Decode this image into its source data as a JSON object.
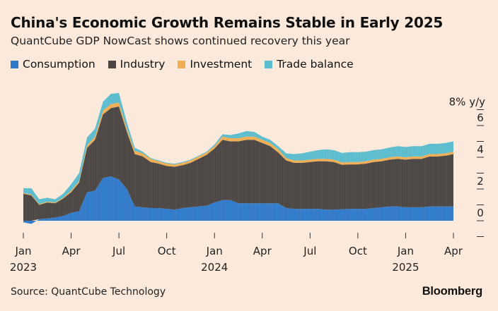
{
  "header": {
    "title": "China's Economic Growth Remains Stable in Early 2025",
    "subtitle": "QuantCube GDP NowCast shows continued recovery this year"
  },
  "footer": {
    "source": "Source: QuantCube Technology",
    "brand": "Bloomberg"
  },
  "colors": {
    "background": "#fbeadb",
    "consumption": "#2f79c9",
    "industry": "#4a4542",
    "investment": "#f0ad52",
    "trade_balance": "#5bbccd"
  },
  "chart_data": {
    "type": "area",
    "stacked": true,
    "unit_label": "8% y/y",
    "x_tick_labels": [
      {
        "month": "Jan",
        "year": "2023",
        "x": 0
      },
      {
        "month": "Apr",
        "year": "",
        "x": 3
      },
      {
        "month": "Jul",
        "year": "",
        "x": 6
      },
      {
        "month": "Oct",
        "year": "",
        "x": 9
      },
      {
        "month": "Jan",
        "year": "2024",
        "x": 12
      },
      {
        "month": "Apr",
        "year": "",
        "x": 15
      },
      {
        "month": "Jul",
        "year": "",
        "x": 18
      },
      {
        "month": "Oct",
        "year": "",
        "x": 21
      },
      {
        "month": "Jan",
        "year": "2025",
        "x": 24
      },
      {
        "month": "Apr",
        "year": "",
        "x": 27
      }
    ],
    "y_ticks": [
      0,
      2,
      4,
      6
    ],
    "ylim": [
      -1,
      8
    ],
    "legend_position": "top-left",
    "x": [
      0,
      0.5,
      1,
      1.5,
      2,
      2.5,
      3,
      3.5,
      4,
      4.5,
      5,
      5.5,
      6,
      6.5,
      7,
      7.5,
      8,
      8.5,
      9,
      9.5,
      10,
      10.5,
      11,
      11.5,
      12,
      12.5,
      13,
      13.5,
      14,
      14.5,
      15,
      15.5,
      16,
      16.5,
      17,
      17.5,
      18,
      18.5,
      19,
      19.5,
      20,
      20.5,
      21,
      21.5,
      22,
      22.5,
      23,
      23.5,
      24,
      24.5,
      25,
      25.5,
      26,
      26.5,
      27
    ],
    "series": [
      {
        "name": "Consumption",
        "values": [
          -0.1,
          -0.2,
          0.1,
          0.15,
          0.2,
          0.3,
          0.5,
          0.6,
          1.8,
          1.9,
          2.7,
          2.8,
          2.6,
          2.0,
          0.9,
          0.85,
          0.8,
          0.8,
          0.75,
          0.7,
          0.8,
          0.85,
          0.9,
          0.95,
          1.15,
          1.3,
          1.3,
          1.1,
          1.1,
          1.1,
          1.1,
          1.1,
          1.1,
          0.8,
          0.75,
          0.75,
          0.75,
          0.75,
          0.7,
          0.7,
          0.72,
          0.75,
          0.75,
          0.75,
          0.8,
          0.85,
          0.9,
          0.9,
          0.85,
          0.85,
          0.85,
          0.9,
          0.9,
          0.9,
          0.9
        ]
      },
      {
        "name": "Industry",
        "values": [
          1.7,
          1.6,
          0.9,
          1.0,
          0.9,
          1.1,
          1.3,
          1.8,
          2.8,
          3.2,
          4.0,
          4.3,
          4.6,
          3.6,
          3.3,
          3.2,
          2.9,
          2.8,
          2.7,
          2.7,
          2.7,
          2.8,
          3.0,
          3.2,
          3.4,
          3.8,
          3.7,
          3.9,
          4.0,
          4.0,
          3.8,
          3.6,
          3.2,
          3.0,
          2.9,
          2.9,
          2.95,
          3.0,
          3.05,
          3.0,
          2.8,
          2.8,
          2.8,
          2.85,
          2.9,
          2.9,
          2.95,
          3.0,
          3.0,
          3.05,
          3.05,
          3.15,
          3.15,
          3.2,
          3.3
        ]
      },
      {
        "name": "Investment",
        "values": [
          0.05,
          0.05,
          0.05,
          0.05,
          0.05,
          0.05,
          0.1,
          0.1,
          0.15,
          0.2,
          0.25,
          0.25,
          0.25,
          0.2,
          0.2,
          0.2,
          0.2,
          0.15,
          0.15,
          0.15,
          0.15,
          0.15,
          0.15,
          0.15,
          0.15,
          0.2,
          0.2,
          0.2,
          0.2,
          0.2,
          0.2,
          0.2,
          0.2,
          0.15,
          0.15,
          0.15,
          0.15,
          0.15,
          0.15,
          0.15,
          0.15,
          0.15,
          0.15,
          0.15,
          0.15,
          0.15,
          0.15,
          0.15,
          0.15,
          0.15,
          0.15,
          0.15,
          0.15,
          0.15,
          0.15
        ]
      },
      {
        "name": "Trade balance",
        "values": [
          0.3,
          0.4,
          0.3,
          0.25,
          0.2,
          0.25,
          0.4,
          0.5,
          0.5,
          0.5,
          0.55,
          0.65,
          0.6,
          0.4,
          0.2,
          0.1,
          0.05,
          0.05,
          0.05,
          0.05,
          0.05,
          0.05,
          0.05,
          0.05,
          0.1,
          0.15,
          0.2,
          0.3,
          0.35,
          0.3,
          0.2,
          0.2,
          0.2,
          0.3,
          0.4,
          0.45,
          0.5,
          0.55,
          0.6,
          0.6,
          0.6,
          0.62,
          0.62,
          0.6,
          0.6,
          0.6,
          0.62,
          0.65,
          0.65,
          0.65,
          0.65,
          0.65,
          0.65,
          0.65,
          0.65
        ]
      }
    ]
  }
}
